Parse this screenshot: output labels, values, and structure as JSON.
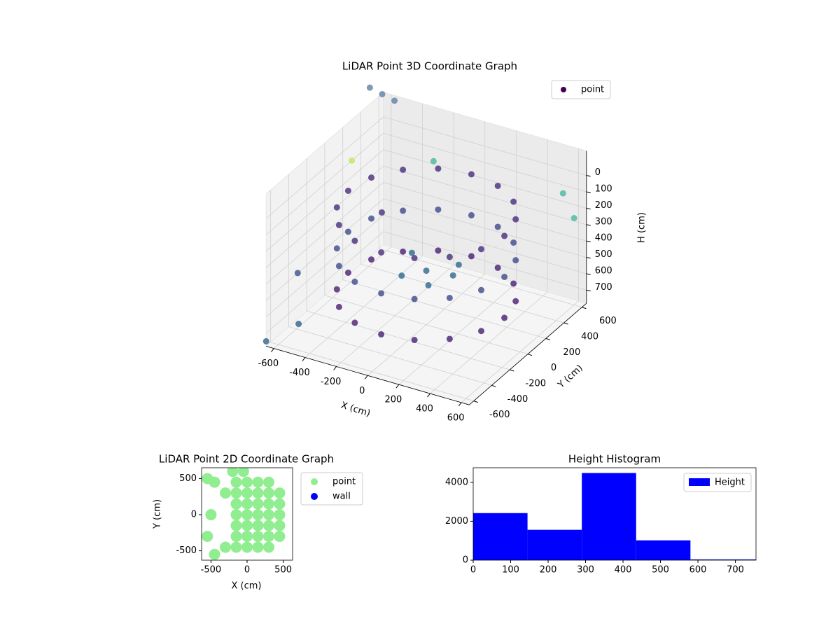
{
  "chart_data": [
    {
      "type": "scatter3d",
      "title": "LiDAR Point 3D Coordinate Graph",
      "xlabel": "X (cm)",
      "ylabel": "Y (cm)",
      "zlabel": "H (cm)",
      "xlim": [
        -650,
        650
      ],
      "ylim": [
        -650,
        650
      ],
      "zlim": [
        -150,
        780
      ],
      "zinverted": true,
      "xticks": [
        -600,
        -400,
        -200,
        0,
        200,
        400,
        600
      ],
      "yticks": [
        -600,
        -400,
        -200,
        0,
        200,
        400,
        600
      ],
      "zticks": [
        0,
        100,
        200,
        300,
        400,
        500,
        600,
        700
      ],
      "grid": true,
      "legend": "upper right",
      "series": [
        {
          "name": "point",
          "color": "#440154",
          "x": [
            500,
            462,
            354,
            191,
            0,
            -191,
            -354,
            -462,
            -500,
            -462,
            -354,
            -191,
            0,
            191,
            354,
            462,
            500,
            462,
            354,
            191,
            0,
            -191,
            -354,
            -462,
            -500,
            -462,
            -354,
            -191,
            0,
            191,
            354,
            462,
            500,
            462,
            354,
            191,
            0,
            -191,
            -354,
            -462,
            -500,
            -462,
            -354,
            -191,
            0,
            191,
            354,
            462,
            0,
            150,
            -150,
            100,
            -100,
            200,
            -650,
            -600,
            -550,
            -650,
            -300,
            500,
            600,
            -650,
            -500,
            -650,
            -400
          ],
          "y": [
            0,
            191,
            354,
            462,
            500,
            462,
            354,
            191,
            0,
            -191,
            -354,
            -462,
            -500,
            -462,
            -354,
            -191,
            0,
            191,
            354,
            462,
            500,
            462,
            354,
            191,
            0,
            -191,
            -354,
            -462,
            -500,
            -462,
            -354,
            -191,
            0,
            191,
            354,
            462,
            500,
            462,
            354,
            191,
            0,
            -191,
            -354,
            -462,
            -500,
            -462,
            -354,
            -191,
            0,
            100,
            100,
            -150,
            -100,
            -50,
            500,
            550,
            600,
            300,
            600,
            650,
            600,
            -300,
            -550,
            -650,
            200
          ],
          "z": [
            100,
            100,
            100,
            100,
            100,
            100,
            100,
            100,
            100,
            100,
            100,
            100,
            100,
            100,
            100,
            100,
            350,
            350,
            350,
            350,
            350,
            350,
            350,
            350,
            350,
            350,
            350,
            350,
            350,
            350,
            350,
            350,
            600,
            600,
            600,
            600,
            600,
            600,
            600,
            600,
            600,
            600,
            600,
            600,
            600,
            600,
            600,
            600,
            450,
            420,
            430,
            440,
            460,
            400,
            -250,
            -200,
            -150,
            100,
            150,
            150,
            250,
            500,
            650,
            750,
            300
          ],
          "colors": [
            "#472d7b",
            "#472d7b",
            "#472d7b",
            "#472d7b",
            "#472d7b",
            "#472d7b",
            "#472d7b",
            "#472d7b",
            "#472d7b",
            "#472d7b",
            "#472d7b",
            "#472d7b",
            "#472d7b",
            "#472d7b",
            "#472d7b",
            "#472d7b",
            "#3e4a89",
            "#3e4a89",
            "#3e4a89",
            "#3e4a89",
            "#3e4a89",
            "#3e4a89",
            "#3e4a89",
            "#3e4a89",
            "#3e4a89",
            "#3e4a89",
            "#3e4a89",
            "#3e4a89",
            "#3e4a89",
            "#3e4a89",
            "#3e4a89",
            "#3e4a89",
            "#481f70",
            "#481f70",
            "#481f70",
            "#481f70",
            "#481f70",
            "#481f70",
            "#481f70",
            "#481f70",
            "#481f70",
            "#481f70",
            "#481f70",
            "#481f70",
            "#481f70",
            "#481f70",
            "#481f70",
            "#481f70",
            "#31688e",
            "#31688e",
            "#31688e",
            "#31688e",
            "#31688e",
            "#31688e",
            "#5f7fa6",
            "#5f7fa6",
            "#5f7fa6",
            "#bde85f",
            "#4bb6a0",
            "#4bb6a0",
            "#4bb6a0",
            "#3b528b",
            "#355f8d",
            "#31688e",
            "#46327e"
          ]
        }
      ]
    },
    {
      "type": "scatter",
      "title": "LiDAR Point 2D Coordinate Graph",
      "xlabel": "X (cm)",
      "ylabel": "Y (cm)",
      "xlim": [
        -630,
        630
      ],
      "ylim": [
        -630,
        650
      ],
      "xticks": [
        -500,
        0,
        500
      ],
      "yticks": [
        -500,
        0,
        500
      ],
      "legend": "outside right",
      "series": [
        {
          "name": "point",
          "color": "#90ee90",
          "x": [
            450,
            450,
            450,
            450,
            450,
            300,
            300,
            300,
            300,
            300,
            300,
            300,
            150,
            150,
            150,
            150,
            150,
            150,
            150,
            0,
            0,
            0,
            0,
            0,
            0,
            0,
            -150,
            -150,
            -150,
            -150,
            -150,
            -150,
            -150,
            -300,
            -450,
            -550,
            -500,
            -550,
            -450,
            -300,
            -200,
            -50
          ],
          "y": [
            -300,
            -150,
            0,
            150,
            300,
            -450,
            -300,
            -150,
            0,
            150,
            300,
            450,
            -450,
            -300,
            -150,
            0,
            150,
            300,
            450,
            -450,
            -300,
            -150,
            0,
            150,
            300,
            450,
            -450,
            -300,
            -150,
            0,
            150,
            300,
            450,
            300,
            450,
            500,
            0,
            -300,
            -550,
            -450,
            600,
            600
          ]
        },
        {
          "name": "wall",
          "color": "#0000ff",
          "x": [],
          "y": []
        }
      ]
    },
    {
      "type": "histogram",
      "title": "Height Histogram",
      "bins": [
        0,
        145,
        290,
        435,
        580,
        755
      ],
      "xlim": [
        0,
        755
      ],
      "ylim": [
        0,
        4750
      ],
      "xticks": [
        0,
        100,
        200,
        300,
        400,
        500,
        600,
        700
      ],
      "yticks": [
        0,
        2000,
        4000
      ],
      "legend": "upper right",
      "series": [
        {
          "name": "Height",
          "color": "#0000ff",
          "values": [
            2420,
            1560,
            4480,
            1020,
            40
          ]
        }
      ]
    }
  ]
}
